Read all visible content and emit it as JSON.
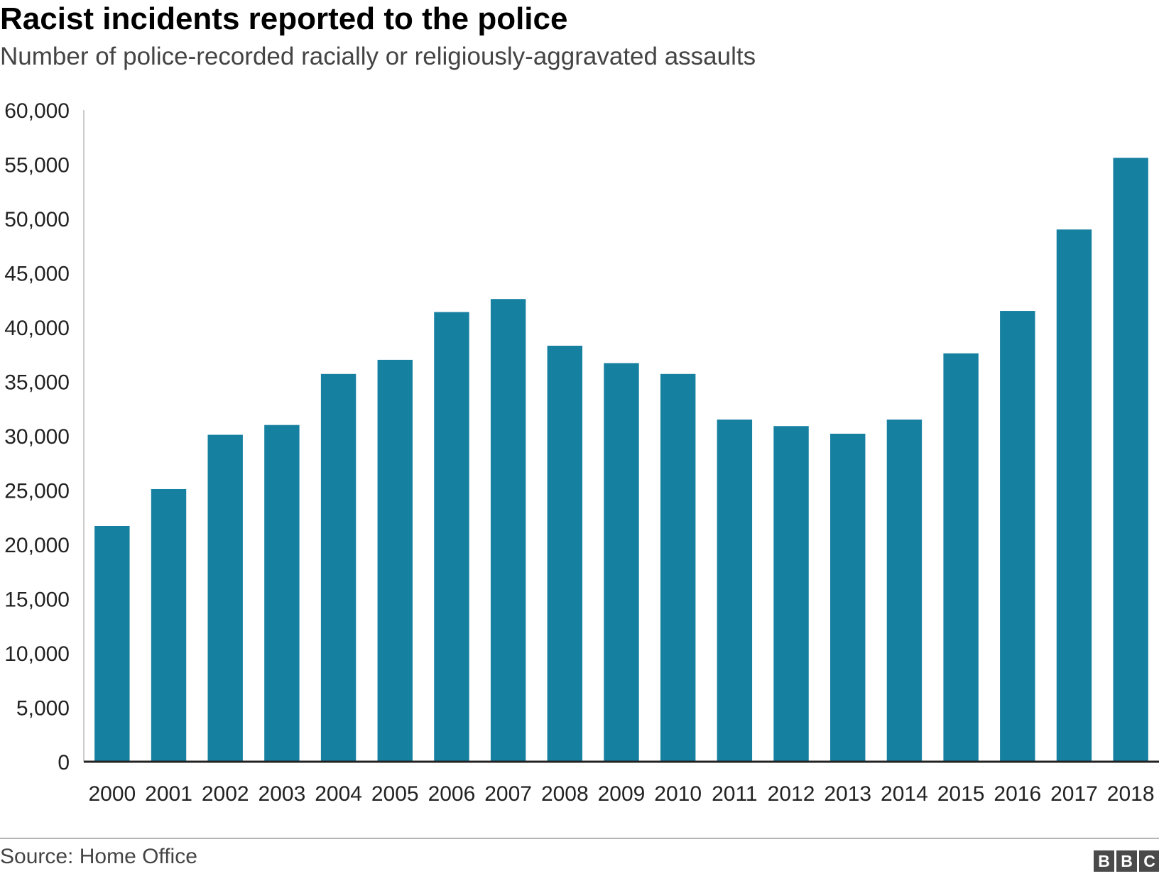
{
  "header": {
    "title": "Racist incidents reported to the police",
    "subtitle": "Number of police-recorded racially or religiously-aggravated assaults"
  },
  "footer": {
    "source": "Source: Home Office",
    "logo_letters": [
      "B",
      "B",
      "C"
    ]
  },
  "colors": {
    "bar": "#1680a1",
    "axis": "#222222",
    "gridline_axis": "#cccccc"
  },
  "chart_data": {
    "type": "bar",
    "title": "Racist incidents reported to the police",
    "subtitle": "Number of police-recorded racially or religiously-aggravated assaults",
    "xlabel": "",
    "ylabel": "",
    "categories": [
      "2000",
      "2001",
      "2002",
      "2003",
      "2004",
      "2005",
      "2006",
      "2007",
      "2008",
      "2009",
      "2010",
      "2011",
      "2012",
      "2013",
      "2014",
      "2015",
      "2016",
      "2017",
      "2018"
    ],
    "values": [
      21700,
      25100,
      30100,
      31000,
      35700,
      37000,
      41400,
      42600,
      38300,
      36700,
      35700,
      31500,
      30900,
      30200,
      31500,
      37600,
      41500,
      49000,
      55600
    ],
    "ylim": [
      0,
      60000
    ],
    "yticks": [
      0,
      5000,
      10000,
      15000,
      20000,
      25000,
      30000,
      35000,
      40000,
      45000,
      50000,
      55000,
      60000
    ],
    "ytick_labels": [
      "0",
      "5,000",
      "10,000",
      "15,000",
      "20,000",
      "25,000",
      "30,000",
      "35,000",
      "40,000",
      "45,000",
      "50,000",
      "55,000",
      "60,000"
    ],
    "grid": false,
    "legend": "none"
  }
}
